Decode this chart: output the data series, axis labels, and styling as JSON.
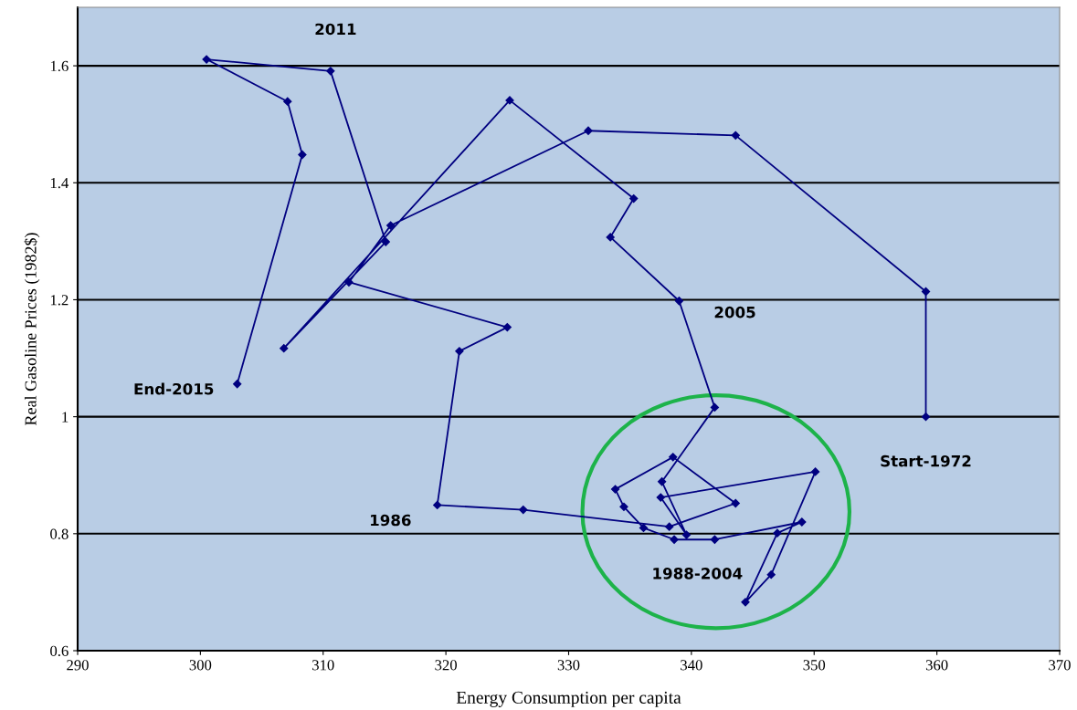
{
  "chart_data": {
    "type": "line",
    "xlabel": "Energy Consumption per capita",
    "ylabel": "Real Gasoline Prices (1982$)",
    "x": [
      359.1,
      359.1,
      343.6,
      331.6,
      315.5,
      312.1,
      325.0,
      321.1,
      319.3,
      326.3,
      338.2,
      343.6,
      338.5,
      333.8,
      334.5,
      336.1,
      338.6,
      341.9,
      349.0,
      347.0,
      344.4,
      346.5,
      350.1,
      337.5,
      339.6,
      337.6,
      341.9,
      339.0,
      333.4,
      335.3,
      325.2,
      306.8,
      315.1,
      310.6,
      300.5,
      307.1,
      308.3,
      303.0
    ],
    "series": [
      {
        "color": "#000080",
        "values": [
          1.0,
          1.214,
          1.481,
          1.489,
          1.327,
          1.23,
          1.153,
          1.112,
          0.849,
          0.841,
          0.812,
          0.852,
          0.931,
          0.876,
          0.846,
          0.81,
          0.79,
          0.79,
          0.82,
          0.801,
          0.683,
          0.73,
          0.906,
          0.862,
          0.798,
          0.889,
          1.016,
          1.198,
          1.307,
          1.373,
          1.541,
          1.117,
          1.299,
          1.591,
          1.611,
          1.539,
          1.448,
          1.056
        ]
      }
    ],
    "marker": "diamond",
    "line_style": "solid",
    "xlim": [
      290,
      370
    ],
    "xticks": [
      290,
      300,
      310,
      320,
      330,
      340,
      350,
      360,
      370
    ],
    "ylim": [
      0.6,
      1.7
    ],
    "yticks": [
      0.6,
      0.8,
      {
        "value": 1.0,
        "label": "1"
      },
      1.2,
      1.4,
      1.6
    ],
    "grid": "y",
    "legend": false,
    "annotations": [
      {
        "text": "2011",
        "x": 310.6,
        "y": 1.591
      },
      {
        "text": "2005",
        "x": 339.0,
        "y": 1.198
      },
      {
        "text": "End-2015",
        "x": 303.0,
        "y": 1.056
      },
      {
        "text": "Start-1972",
        "x": 359.1,
        "y": 1.0
      },
      {
        "text": "1986",
        "x": 319.3,
        "y": 0.849
      },
      "1988-2004"
    ]
  }
}
